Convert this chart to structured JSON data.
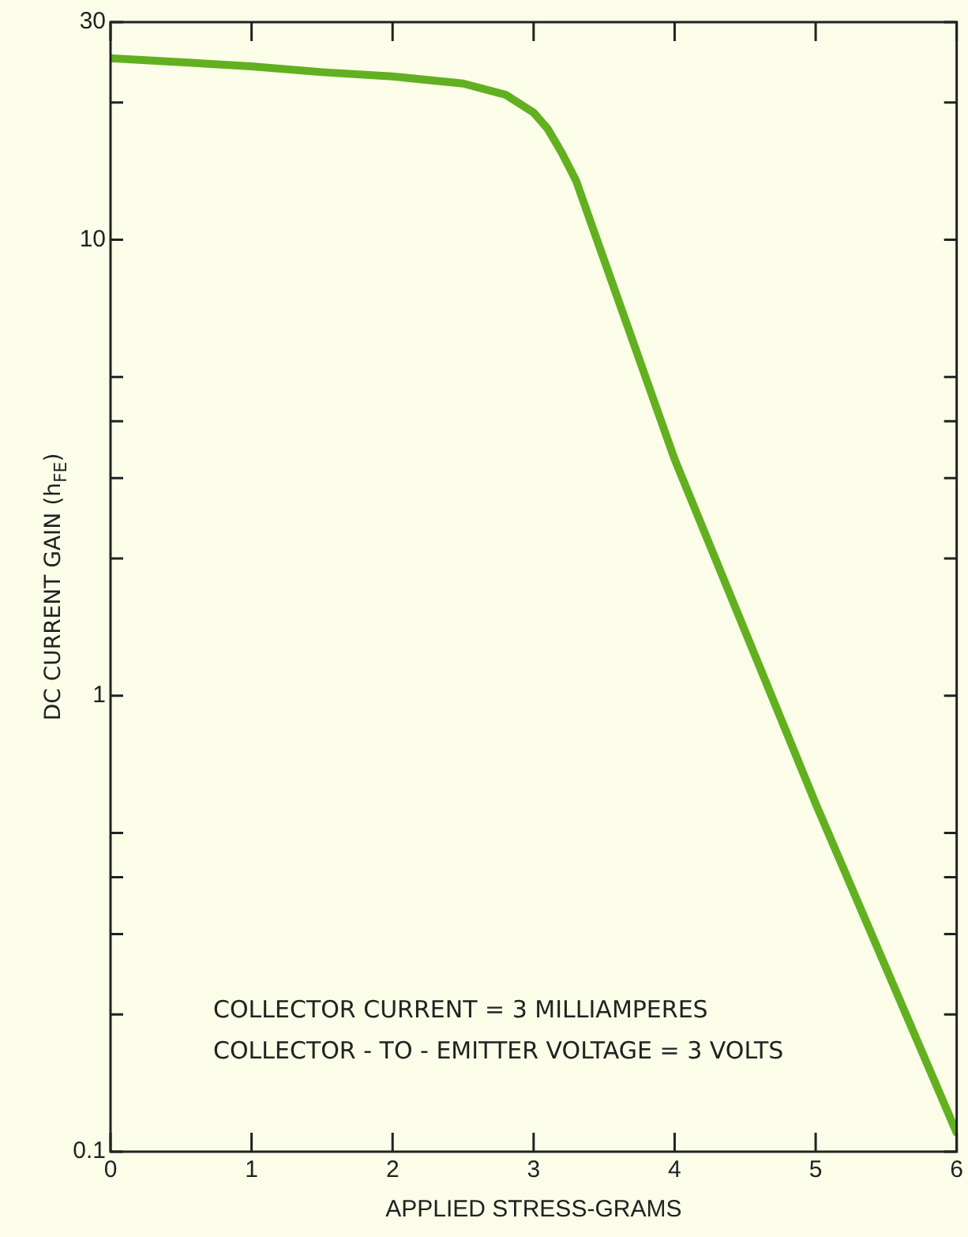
{
  "chart_data": {
    "type": "line",
    "xlabel": "APPLIED STRESS-GRAMS",
    "ylabel": "DC CURRENT GAIN (h$_{FE}$)",
    "x": [
      0,
      0.5,
      1,
      1.5,
      2,
      2.5,
      2.8,
      3,
      3.1,
      3.2,
      3.3,
      4,
      5,
      6
    ],
    "series": [
      {
        "color": "#62b020",
        "values": [
          25,
          24.5,
          24,
          23.3,
          22.8,
          22,
          20.8,
          19,
          17.5,
          15.5,
          13.5,
          3.3,
          0.58,
          0.11
        ]
      }
    ],
    "xlim": [
      0,
      6
    ],
    "xticks": [
      0,
      1,
      2,
      3,
      4,
      5,
      6
    ],
    "ylim": [
      0.1,
      30
    ],
    "log": true,
    "yticks": [
      0.1,
      {
        "value": 0.2,
        "label": null
      },
      {
        "value": 0.3,
        "label": null
      },
      {
        "value": 0.4,
        "label": null
      },
      {
        "value": 0.5,
        "label": null
      },
      1,
      {
        "value": 2,
        "label": null
      },
      {
        "value": 3,
        "label": null
      },
      {
        "value": 4,
        "label": null
      },
      {
        "value": 5,
        "label": null
      },
      10,
      {
        "value": 20,
        "label": null
      },
      30
    ],
    "annotations": [
      "COLLECTOR CURRENT = 3 MILLIAMPERES",
      "COLLECTOR - TO - EMITTER VOLTAGE = 3 VOLTS"
    ],
    "grid": false,
    "legend": false,
    "marker": "none",
    "line_style": "solid"
  }
}
